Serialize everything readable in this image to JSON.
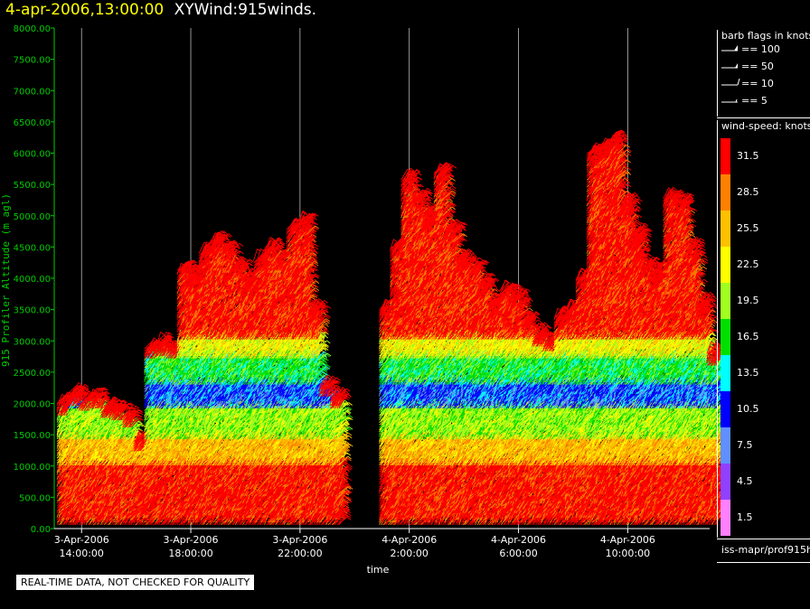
{
  "header": {
    "date_label": "4-apr-2006,13:00:00",
    "plot_name": "XYWind:915winds."
  },
  "quality_note": "REAL-TIME DATA, NOT CHECKED FOR QUALITY",
  "barb_legend": {
    "title": "barb flags in knots",
    "items": [
      {
        "label": "== 100"
      },
      {
        "label": "== 50"
      },
      {
        "label": "== 10"
      },
      {
        "label": "== 5"
      }
    ]
  },
  "colorbar": {
    "title": "wind-speed: knots",
    "levels": [
      {
        "value": "31.5",
        "color": "#ff0000"
      },
      {
        "value": "28.5",
        "color": "#ff8000"
      },
      {
        "value": "25.5",
        "color": "#ffc000"
      },
      {
        "value": "22.5",
        "color": "#ffff00"
      },
      {
        "value": "19.5",
        "color": "#a0ff20"
      },
      {
        "value": "16.5",
        "color": "#00e000"
      },
      {
        "value": "13.5",
        "color": "#00ffff"
      },
      {
        "value": "10.5",
        "color": "#0000ff"
      },
      {
        "value": "7.5",
        "color": "#6090ff"
      },
      {
        "value": "4.5",
        "color": "#9040ff"
      },
      {
        "value": "1.5",
        "color": "#ff80ff"
      }
    ]
  },
  "footer_id": "iss-mapr/prof915h",
  "chart_data": {
    "type": "scatter",
    "xlabel": "time",
    "ylabel": "915 Profiler Altitude (m agl)",
    "ylim": [
      0,
      8000
    ],
    "yticks": [
      "0.00",
      "500.00",
      "1000.00",
      "1500.00",
      "2000.00",
      "2500.00",
      "3000.00",
      "3500.00",
      "4000.00",
      "4500.00",
      "5000.00",
      "5500.00",
      "6000.00",
      "6500.00",
      "7000.00",
      "7500.00",
      "8000.00"
    ],
    "xticks": [
      {
        "date": "3-Apr-2006",
        "time": "14:00:00",
        "hour": 14
      },
      {
        "date": "3-Apr-2006",
        "time": "18:00:00",
        "hour": 18
      },
      {
        "date": "3-Apr-2006",
        "time": "22:00:00",
        "hour": 22
      },
      {
        "date": "4-Apr-2006",
        "time": "2:00:00",
        "hour": 26
      },
      {
        "date": "4-Apr-2006",
        "time": "6:00:00",
        "hour": 30
      },
      {
        "date": "4-Apr-2006",
        "time": "10:00:00",
        "hour": 34
      }
    ],
    "x_range_hours": [
      13.0,
      37.0
    ],
    "grid": "vertical lines at tick times",
    "profiles": [
      {
        "hour": 13.1,
        "top": 2000
      },
      {
        "hour": 13.5,
        "top": 2150
      },
      {
        "hour": 13.9,
        "top": 2050
      },
      {
        "hour": 14.3,
        "top": 2100
      },
      {
        "hour": 14.7,
        "top": 1950
      },
      {
        "hour": 15.1,
        "top": 1900
      },
      {
        "hour": 15.5,
        "top": 1800
      },
      {
        "hour": 15.9,
        "top": 1400
      },
      {
        "hour": 16.3,
        "top": 2900
      },
      {
        "hour": 16.7,
        "top": 2950
      },
      {
        "hour": 17.1,
        "top": 2900
      },
      {
        "hour": 17.5,
        "top": 4150
      },
      {
        "hour": 17.9,
        "top": 4050
      },
      {
        "hour": 18.3,
        "top": 4400
      },
      {
        "hour": 18.7,
        "top": 4600
      },
      {
        "hour": 19.1,
        "top": 4450
      },
      {
        "hour": 19.5,
        "top": 4200
      },
      {
        "hour": 19.9,
        "top": 4000
      },
      {
        "hour": 20.3,
        "top": 4300
      },
      {
        "hour": 20.7,
        "top": 4500
      },
      {
        "hour": 21.1,
        "top": 4300
      },
      {
        "hour": 21.5,
        "top": 4800
      },
      {
        "hour": 21.9,
        "top": 4900
      },
      {
        "hour": 22.3,
        "top": 3500
      },
      {
        "hour": 22.7,
        "top": 2300
      },
      {
        "hour": 23.1,
        "top": 2100
      },
      {
        "hour": 24.9,
        "top": 3500
      },
      {
        "hour": 25.3,
        "top": 4500
      },
      {
        "hour": 25.7,
        "top": 5600
      },
      {
        "hour": 26.1,
        "top": 5300
      },
      {
        "hour": 26.5,
        "top": 5000
      },
      {
        "hour": 26.9,
        "top": 5700
      },
      {
        "hour": 27.3,
        "top": 4800
      },
      {
        "hour": 27.7,
        "top": 4300
      },
      {
        "hour": 28.1,
        "top": 4200
      },
      {
        "hour": 28.5,
        "top": 3900
      },
      {
        "hour": 28.9,
        "top": 3600
      },
      {
        "hour": 29.3,
        "top": 3800
      },
      {
        "hour": 29.7,
        "top": 3700
      },
      {
        "hour": 30.1,
        "top": 3300
      },
      {
        "hour": 30.5,
        "top": 3100
      },
      {
        "hour": 30.9,
        "top": 3000
      },
      {
        "hour": 31.3,
        "top": 3400
      },
      {
        "hour": 31.7,
        "top": 3500
      },
      {
        "hour": 32.1,
        "top": 4000
      },
      {
        "hour": 32.5,
        "top": 6000
      },
      {
        "hour": 32.9,
        "top": 6100
      },
      {
        "hour": 33.3,
        "top": 6200
      },
      {
        "hour": 33.7,
        "top": 5200
      },
      {
        "hour": 34.1,
        "top": 4700
      },
      {
        "hour": 34.5,
        "top": 4200
      },
      {
        "hour": 34.9,
        "top": 4100
      },
      {
        "hour": 35.3,
        "top": 5300
      },
      {
        "hour": 35.7,
        "top": 5200
      },
      {
        "hour": 36.1,
        "top": 4500
      },
      {
        "hour": 36.5,
        "top": 3600
      },
      {
        "hour": 36.9,
        "top": 2800
      }
    ],
    "speed_layers_knots": [
      {
        "from": 0,
        "to": 1000,
        "speed": 31.5
      },
      {
        "from": 1000,
        "to": 1400,
        "speed": 25.5
      },
      {
        "from": 1400,
        "to": 1900,
        "speed": 19.5
      },
      {
        "from": 1900,
        "to": 2300,
        "speed": 10.5
      },
      {
        "from": 2300,
        "to": 2700,
        "speed": 16.5
      },
      {
        "from": 2700,
        "to": 3000,
        "speed": 22.5
      },
      {
        "from": 3000,
        "to": 9000,
        "speed": 31.5
      }
    ]
  }
}
